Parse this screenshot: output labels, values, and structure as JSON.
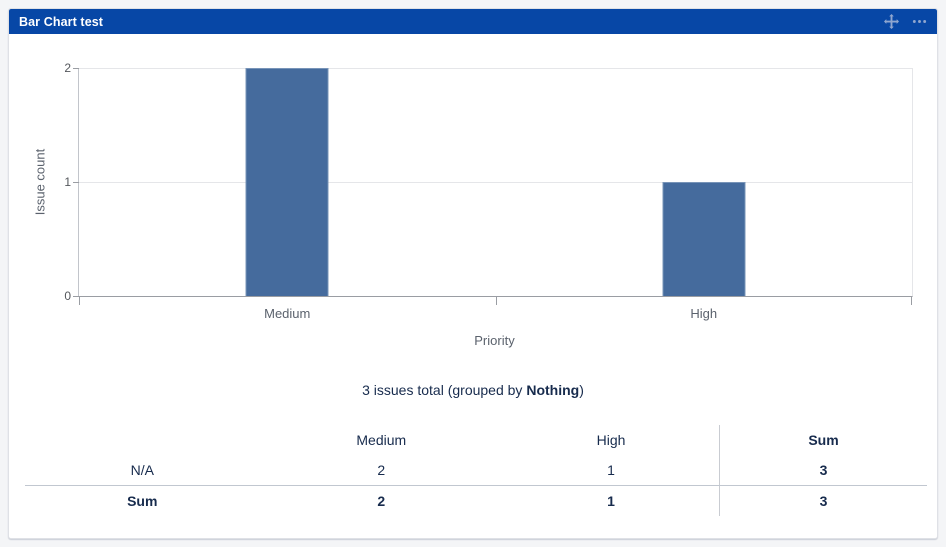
{
  "header": {
    "title": "Bar Chart test",
    "icons": [
      {
        "name": "move-icon"
      },
      {
        "name": "more-menu-icon"
      }
    ]
  },
  "chart_data": {
    "type": "bar",
    "title": "",
    "categories": [
      "Medium",
      "High"
    ],
    "values": [
      2,
      1
    ],
    "xlabel": "Priority",
    "ylabel": "Issue count",
    "ylim": [
      0,
      2
    ],
    "yticks": [
      0,
      1,
      2
    ],
    "grid": true,
    "legend": "none",
    "bar_color": "#456b9d"
  },
  "summary": {
    "before": "3 issues total (grouped by ",
    "group_by": "Nothing",
    "after": ")"
  },
  "table": {
    "columns": [
      "",
      "Medium",
      "High",
      "Sum"
    ],
    "rows": [
      {
        "label": "N/A",
        "values": [
          "2",
          "1",
          "3"
        ],
        "is_sum": false
      },
      {
        "label": "Sum",
        "values": [
          "2",
          "1",
          "3"
        ],
        "is_sum": true
      }
    ]
  },
  "colors": {
    "header_bg": "#0747a6",
    "header_text": "#ffffff",
    "header_icon": "#8fa6cf",
    "bar": "#456b9d",
    "body_text": "#172b4d",
    "axis_text": "#5b626d",
    "gridline": "#e5e6e9",
    "divider": "#c1c7d0"
  }
}
